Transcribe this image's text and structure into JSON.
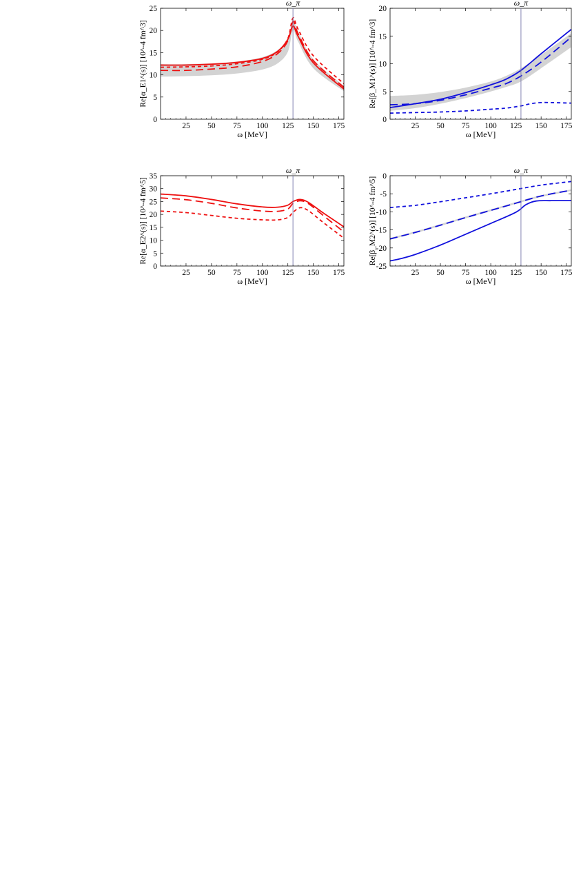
{
  "figure": {
    "marker_label": "ω_π",
    "colors": {
      "red": "#ee1111",
      "blue": "#1111dd",
      "band": "#d3d3d3",
      "marker": "#7777aa"
    }
  },
  "chart_data": [
    {
      "id": "alphaE1",
      "type": "line",
      "title": "",
      "xlabel": "ω [MeV]",
      "ylabel": "Re[α_E1^(s)] [10^-4 fm^3]",
      "xlim": [
        0,
        180
      ],
      "ylim": [
        0,
        25
      ],
      "xticks": [
        25,
        50,
        75,
        100,
        125,
        150,
        175
      ],
      "yticks": [
        0,
        5,
        10,
        15,
        20,
        25
      ],
      "marker_x": 130,
      "color": "#ee1111",
      "band": {
        "x": [
          0,
          25,
          50,
          75,
          100,
          115,
          125,
          130,
          135,
          150,
          180
        ],
        "lower": [
          9.6,
          9.7,
          9.9,
          10.3,
          11.2,
          12.6,
          15.2,
          20.0,
          17.5,
          11.5,
          6.3
        ],
        "upper": [
          12.4,
          12.4,
          12.6,
          13.0,
          14.0,
          15.6,
          18.3,
          22.5,
          19.8,
          13.5,
          7.5
        ]
      },
      "series": [
        {
          "style": "solid",
          "x": [
            0,
            25,
            50,
            75,
            100,
            115,
            125,
            130,
            135,
            150,
            180
          ],
          "values": [
            12.2,
            12.2,
            12.4,
            12.8,
            13.7,
            15.3,
            18.0,
            21.0,
            18.7,
            12.7,
            6.8
          ]
        },
        {
          "style": "long-dash",
          "x": [
            0,
            25,
            50,
            75,
            100,
            115,
            125,
            130,
            135,
            150,
            180
          ],
          "values": [
            11.0,
            11.0,
            11.3,
            11.8,
            13.0,
            14.8,
            17.7,
            22.0,
            19.3,
            13.2,
            7.2
          ]
        },
        {
          "style": "short-dash",
          "x": [
            0,
            25,
            50,
            75,
            100,
            115,
            125,
            130,
            135,
            150,
            180
          ],
          "values": [
            11.7,
            11.8,
            12.0,
            12.5,
            13.5,
            15.2,
            18.2,
            22.8,
            20.3,
            14.3,
            8.0
          ]
        }
      ]
    },
    {
      "id": "betaM1",
      "type": "line",
      "title": "",
      "xlabel": "ω [MeV]",
      "ylabel": "Re[β_M1^(s)] [10^-4 fm^3]",
      "xlim": [
        0,
        180
      ],
      "ylim": [
        0,
        20
      ],
      "xticks": [
        25,
        50,
        75,
        100,
        125,
        150,
        175
      ],
      "yticks": [
        0,
        5,
        10,
        15,
        20
      ],
      "marker_x": 130,
      "color": "#1111dd",
      "band": {
        "x": [
          0,
          25,
          50,
          75,
          100,
          115,
          130,
          150,
          180
        ],
        "lower": [
          1.5,
          2.0,
          2.8,
          3.8,
          5.0,
          5.8,
          6.8,
          9.2,
          13.0
        ],
        "upper": [
          4.2,
          4.4,
          4.9,
          5.7,
          6.8,
          7.8,
          9.2,
          11.6,
          15.5
        ]
      },
      "series": [
        {
          "style": "solid",
          "x": [
            0,
            25,
            50,
            75,
            100,
            115,
            130,
            150,
            180
          ],
          "values": [
            2.1,
            2.8,
            3.6,
            4.8,
            6.2,
            7.2,
            8.8,
            11.8,
            16.2
          ]
        },
        {
          "style": "long-dash",
          "x": [
            0,
            25,
            50,
            75,
            100,
            115,
            130,
            150,
            180
          ],
          "values": [
            2.6,
            2.8,
            3.4,
            4.4,
            5.6,
            6.4,
            7.8,
            10.3,
            14.8
          ]
        },
        {
          "style": "short-dash",
          "x": [
            0,
            25,
            50,
            75,
            100,
            115,
            130,
            140,
            150,
            160,
            180
          ],
          "values": [
            1.1,
            1.2,
            1.3,
            1.5,
            1.8,
            2.0,
            2.4,
            2.8,
            3.0,
            3.0,
            2.9
          ]
        }
      ]
    },
    {
      "id": "alphaE2",
      "type": "line",
      "title": "",
      "xlabel": "ω [MeV]",
      "ylabel": "Re[α_E2^(s)] [10^-4 fm^5]",
      "xlim": [
        0,
        180
      ],
      "ylim": [
        0,
        35
      ],
      "xticks": [
        25,
        50,
        75,
        100,
        125,
        150,
        175
      ],
      "yticks": [
        0,
        5,
        10,
        15,
        20,
        25,
        30,
        35
      ],
      "marker_x": 130,
      "color": "#ee1111",
      "band": null,
      "series": [
        {
          "style": "solid",
          "x": [
            0,
            25,
            50,
            75,
            100,
            115,
            125,
            130,
            137,
            145,
            160,
            180
          ],
          "values": [
            27.9,
            27.2,
            25.8,
            24.1,
            22.9,
            22.8,
            23.6,
            25.0,
            25.8,
            24.7,
            20.5,
            15.2
          ]
        },
        {
          "style": "long-dash",
          "x": [
            0,
            25,
            50,
            75,
            100,
            115,
            125,
            130,
            137,
            145,
            160,
            180
          ],
          "values": [
            26.4,
            25.7,
            24.3,
            22.5,
            21.3,
            21.2,
            22.1,
            24.2,
            25.3,
            24.2,
            19.5,
            13.2
          ]
        },
        {
          "style": "short-dash",
          "x": [
            0,
            25,
            50,
            75,
            100,
            115,
            125,
            130,
            137,
            145,
            160,
            180
          ],
          "values": [
            21.3,
            20.7,
            19.6,
            18.5,
            17.9,
            17.9,
            18.8,
            20.8,
            22.6,
            21.5,
            16.8,
            10.8
          ]
        }
      ]
    },
    {
      "id": "betaM2",
      "type": "line",
      "title": "",
      "xlabel": "ω [MeV]",
      "ylabel": "Re[β_M2^(s)] [10^-4 fm^5]",
      "xlim": [
        0,
        180
      ],
      "ylim": [
        -25,
        0
      ],
      "xticks": [
        25,
        50,
        75,
        100,
        125,
        150,
        175
      ],
      "yticks": [
        -25,
        -20,
        -15,
        -10,
        -5,
        0
      ],
      "marker_x": 130,
      "color": "#1111dd",
      "band": {
        "x": [
          0,
          25,
          50,
          75,
          100,
          125,
          150,
          180
        ],
        "lower": [
          -17.7,
          -15.9,
          -13.9,
          -11.8,
          -9.8,
          -7.8,
          -5.9,
          -4.2
        ],
        "upper": [
          -17.2,
          -15.4,
          -13.4,
          -11.3,
          -9.3,
          -7.3,
          -5.4,
          -3.8
        ]
      },
      "series": [
        {
          "style": "solid",
          "x": [
            0,
            10,
            25,
            50,
            75,
            100,
            125,
            135,
            145,
            160,
            180
          ],
          "values": [
            -23.6,
            -23.0,
            -21.8,
            -19.2,
            -16.2,
            -13.2,
            -10.1,
            -8.0,
            -7.0,
            -6.9,
            -6.9
          ]
        },
        {
          "style": "long-dash",
          "x": [
            0,
            25,
            50,
            75,
            100,
            125,
            150,
            180
          ],
          "values": [
            -17.5,
            -15.7,
            -13.7,
            -11.6,
            -9.6,
            -7.6,
            -5.6,
            -4.0
          ]
        },
        {
          "style": "short-dash",
          "x": [
            0,
            25,
            50,
            75,
            100,
            125,
            150,
            180
          ],
          "values": [
            -8.8,
            -8.2,
            -7.2,
            -6.1,
            -5.0,
            -3.8,
            -2.6,
            -1.6
          ]
        }
      ]
    }
  ]
}
